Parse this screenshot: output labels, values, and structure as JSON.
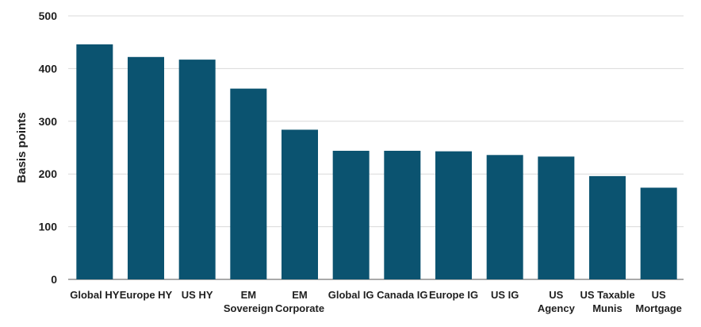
{
  "chart_data": {
    "type": "bar",
    "categories": [
      [
        "Global HY"
      ],
      [
        "Europe HY"
      ],
      [
        "US HY"
      ],
      [
        "EM",
        "Sovereign"
      ],
      [
        "EM",
        "Corporate"
      ],
      [
        "Global IG"
      ],
      [
        "Canada IG"
      ],
      [
        "Europe IG"
      ],
      [
        "US IG"
      ],
      [
        "US",
        "Agency"
      ],
      [
        "US Taxable",
        "Munis"
      ],
      [
        "US",
        "Mortgage"
      ]
    ],
    "values": [
      446,
      422,
      417,
      362,
      284,
      244,
      244,
      243,
      236,
      233,
      196,
      174
    ],
    "ylabel": "Basis points",
    "xlabel": "",
    "title": "",
    "ylim": [
      0,
      500
    ],
    "yticks": [
      0,
      100,
      200,
      300,
      400,
      500
    ],
    "grid": true,
    "bar_color": "#0b5370"
  }
}
